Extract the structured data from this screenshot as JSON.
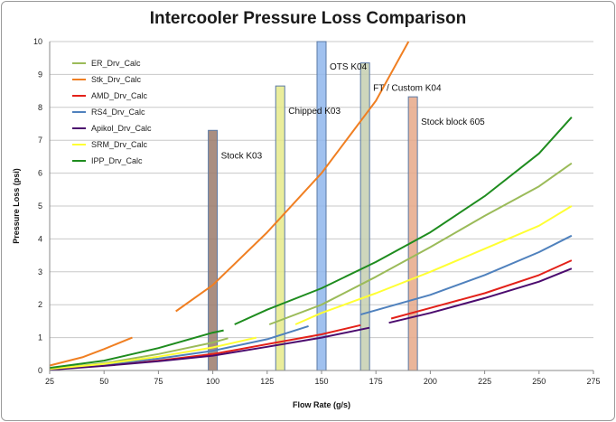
{
  "chart_data": {
    "type": "line",
    "title": "Intercooler Pressure Loss Comparison",
    "xlabel": "Flow Rate (g/s)",
    "ylabel": "Pressure Loss (psi)",
    "xlim": [
      25,
      275
    ],
    "ylim": [
      0,
      10
    ],
    "xticks": [
      25,
      50,
      75,
      100,
      125,
      150,
      175,
      200,
      225,
      250,
      275
    ],
    "yticks": [
      0,
      1,
      2,
      3,
      4,
      5,
      6,
      7,
      8,
      9,
      10
    ],
    "grid": true,
    "legend": "top-left",
    "series": [
      {
        "name": "ER_Drv_Calc",
        "color": "#9bbb59",
        "segments": [
          [
            [
              25,
              0.05
            ],
            [
              50,
              0.22
            ],
            [
              75,
              0.5
            ],
            [
              100,
              0.85
            ],
            [
              107,
              0.98
            ]
          ],
          [
            [
              126,
              1.4
            ],
            [
              150,
              2.0
            ],
            [
              175,
              2.85
            ],
            [
              200,
              3.75
            ],
            [
              225,
              4.7
            ],
            [
              250,
              5.6
            ],
            [
              265,
              6.3
            ]
          ]
        ]
      },
      {
        "name": "Stk_Drv_Calc",
        "color": "#f07f22",
        "segments": [
          [
            [
              25,
              0.15
            ],
            [
              40,
              0.4
            ],
            [
              50,
              0.65
            ],
            [
              63,
              1.0
            ]
          ],
          [
            [
              83,
              1.8
            ],
            [
              100,
              2.6
            ],
            [
              125,
              4.2
            ],
            [
              150,
              6.0
            ],
            [
              175,
              8.2
            ],
            [
              190,
              10.0
            ]
          ]
        ]
      },
      {
        "name": "AMD_Drv_Calc",
        "color": "#e32119",
        "segments": [
          [
            [
              25,
              0.03
            ],
            [
              50,
              0.15
            ],
            [
              75,
              0.3
            ],
            [
              100,
              0.5
            ],
            [
              125,
              0.8
            ],
            [
              150,
              1.1
            ],
            [
              168,
              1.38
            ]
          ],
          [
            [
              182,
              1.58
            ],
            [
              200,
              1.9
            ],
            [
              225,
              2.35
            ],
            [
              250,
              2.9
            ],
            [
              265,
              3.35
            ]
          ]
        ]
      },
      {
        "name": "RS4_Drv_Calc",
        "color": "#4f81bd",
        "segments": [
          [
            [
              25,
              0.04
            ],
            [
              50,
              0.18
            ],
            [
              75,
              0.36
            ],
            [
              100,
              0.6
            ],
            [
              125,
              0.95
            ],
            [
              144,
              1.35
            ]
          ],
          [
            [
              168,
              1.7
            ],
            [
              200,
              2.3
            ],
            [
              225,
              2.9
            ],
            [
              250,
              3.6
            ],
            [
              265,
              4.1
            ]
          ]
        ]
      },
      {
        "name": "Apikol_Drv_Calc",
        "color": "#4b0b6e",
        "segments": [
          [
            [
              25,
              0.02
            ],
            [
              50,
              0.14
            ],
            [
              75,
              0.28
            ],
            [
              100,
              0.45
            ],
            [
              125,
              0.72
            ],
            [
              150,
              1.0
            ],
            [
              172,
              1.3
            ]
          ],
          [
            [
              181,
              1.45
            ],
            [
              200,
              1.75
            ],
            [
              225,
              2.2
            ],
            [
              250,
              2.7
            ],
            [
              265,
              3.1
            ]
          ]
        ]
      },
      {
        "name": "SRM_Drv_Calc",
        "color": "#ffff33",
        "segments": [
          [
            [
              25,
              0.05
            ],
            [
              50,
              0.2
            ],
            [
              75,
              0.42
            ],
            [
              100,
              0.7
            ],
            [
              120,
              1.0
            ]
          ],
          [
            [
              138,
              1.4
            ],
            [
              150,
              1.75
            ],
            [
              175,
              2.35
            ],
            [
              200,
              3.0
            ],
            [
              225,
              3.7
            ],
            [
              250,
              4.4
            ],
            [
              265,
              5.0
            ]
          ]
        ]
      },
      {
        "name": "IPP_Drv_Calc",
        "color": "#1e8c1e",
        "segments": [
          [
            [
              25,
              0.08
            ],
            [
              50,
              0.3
            ],
            [
              75,
              0.68
            ],
            [
              100,
              1.15
            ],
            [
              105,
              1.22
            ]
          ],
          [
            [
              110,
              1.4
            ],
            [
              125,
              1.85
            ],
            [
              150,
              2.5
            ],
            [
              175,
              3.3
            ],
            [
              200,
              4.2
            ],
            [
              225,
              5.3
            ],
            [
              250,
              6.6
            ],
            [
              265,
              7.7
            ]
          ]
        ]
      }
    ],
    "bars": [
      {
        "label": "Stock K03",
        "x": 100,
        "value": 7.3,
        "color": "#9b7a6b"
      },
      {
        "label": "Chipped K03",
        "x": 131,
        "value": 8.65,
        "color": "#e6ea8a"
      },
      {
        "label": "OTS K04",
        "x": 150,
        "value": 10.0,
        "color": "#8fb6ec"
      },
      {
        "label": "FT / Custom K04",
        "x": 170,
        "value": 9.35,
        "color": "#c6cfb0"
      },
      {
        "label": "Stock block 605",
        "x": 192,
        "value": 8.32,
        "color": "#e6a888"
      }
    ]
  }
}
